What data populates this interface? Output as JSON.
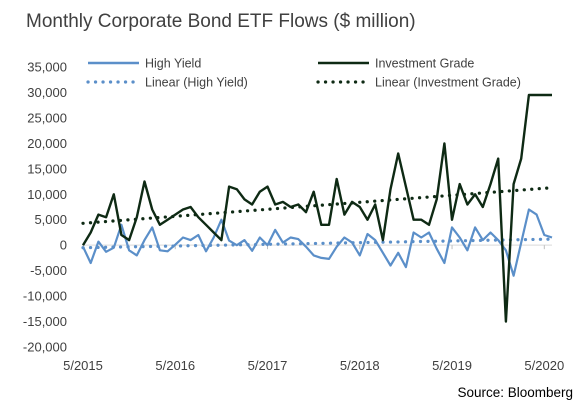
{
  "chart_data": {
    "type": "line",
    "title": "Monthly Corporate Bond ETF Flows ($ million)",
    "xlabel": "",
    "ylabel": "",
    "ylim": [
      -20000,
      35000
    ],
    "y_ticks": [
      35000,
      30000,
      25000,
      20000,
      15000,
      10000,
      5000,
      0,
      -5000,
      -10000,
      -15000,
      -20000
    ],
    "y_tick_labels": [
      "35,000",
      "30,000",
      "25,000",
      "20,000",
      "15,000",
      "10,000",
      "5,000",
      "0",
      "-5,000",
      "-10,000",
      "-15,000",
      "-20,000"
    ],
    "x_tick_labels": [
      "5/2015",
      "5/2016",
      "5/2017",
      "5/2018",
      "5/2019",
      "5/2020"
    ],
    "x_tick_months": [
      0,
      12,
      24,
      36,
      48,
      60
    ],
    "x_range_months": [
      0,
      61
    ],
    "grid": false,
    "legend_position": "top",
    "series": [
      {
        "name": "High Yield",
        "style": "solid",
        "color": "#5b8fc9",
        "x": [
          0,
          1,
          2,
          3,
          4,
          5,
          6,
          7,
          8,
          9,
          10,
          11,
          12,
          13,
          14,
          15,
          16,
          17,
          18,
          19,
          20,
          21,
          22,
          23,
          24,
          25,
          26,
          27,
          28,
          29,
          30,
          31,
          32,
          33,
          34,
          35,
          36,
          37,
          38,
          39,
          40,
          41,
          42,
          43,
          44,
          45,
          46,
          47,
          48,
          49,
          50,
          51,
          52,
          53,
          54,
          55,
          56,
          57,
          58,
          59,
          60,
          61
        ],
        "values": [
          -300,
          -3500,
          700,
          -1300,
          -500,
          4000,
          -1000,
          -2000,
          1000,
          3500,
          -1000,
          -1200,
          100,
          1500,
          1000,
          2000,
          -1200,
          1500,
          5000,
          900,
          0,
          1000,
          -1100,
          1500,
          0,
          3000,
          500,
          1500,
          1200,
          -300,
          -2000,
          -2500,
          -2700,
          -300,
          1500,
          500,
          -2000,
          2200,
          1000,
          -1500,
          -4000,
          -1500,
          -4300,
          2500,
          1500,
          2500,
          -700,
          -3500,
          3500,
          1500,
          -1000,
          3500,
          1000,
          2500,
          1000,
          -1000,
          -6000,
          500,
          7000,
          6000,
          2000,
          1500
        ]
      },
      {
        "name": "Investment Grade",
        "style": "solid",
        "color": "#0e2a14",
        "x": [
          0,
          1,
          2,
          3,
          4,
          5,
          6,
          7,
          8,
          9,
          10,
          11,
          12,
          13,
          14,
          15,
          16,
          17,
          18,
          19,
          20,
          21,
          22,
          23,
          24,
          25,
          26,
          27,
          28,
          29,
          30,
          31,
          32,
          33,
          34,
          35,
          36,
          37,
          38,
          39,
          40,
          41,
          42,
          43,
          44,
          45,
          46,
          47,
          48,
          49,
          50,
          51,
          52,
          53,
          54,
          55,
          56,
          57,
          58,
          59,
          60,
          61
        ],
        "values": [
          0,
          2500,
          6000,
          5500,
          10000,
          2000,
          1000,
          5500,
          12500,
          7000,
          4000,
          5000,
          6000,
          7000,
          7500,
          5500,
          4000,
          2500,
          1000,
          11500,
          11000,
          9000,
          8000,
          10500,
          11500,
          8000,
          8500,
          7500,
          8000,
          6500,
          10500,
          4000,
          4000,
          13000,
          6000,
          8500,
          7500,
          5000,
          8000,
          1000,
          11000,
          18000,
          11500,
          5000,
          5000,
          4000,
          9000,
          20000,
          5000,
          12000,
          8000,
          10000,
          7500,
          12000,
          17000,
          -15000,
          12000,
          17000,
          29500,
          29500,
          29500,
          29500
        ]
      },
      {
        "name": "Linear (High Yield)",
        "style": "dotted",
        "color": "#5b8fc9",
        "x": [
          0,
          61
        ],
        "values": [
          -500,
          1200
        ]
      },
      {
        "name": "Linear (Investment Grade)",
        "style": "dotted",
        "color": "#0e2a14",
        "x": [
          0,
          61
        ],
        "values": [
          4300,
          11300
        ]
      }
    ]
  },
  "source": "Source:  Bloomberg"
}
